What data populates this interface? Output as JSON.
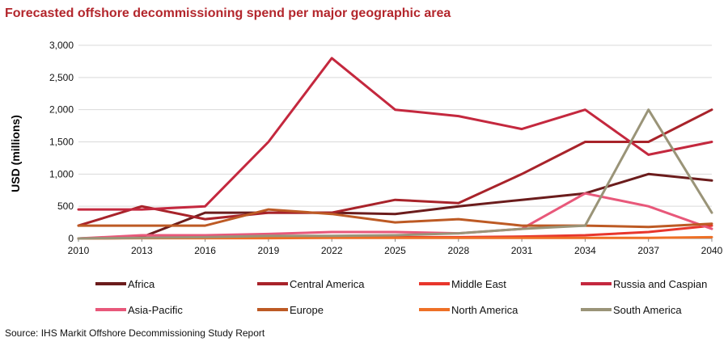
{
  "title": "Forecasted offshore decommissioning spend per major geographic area",
  "source": "Source: IHS Markit Offshore Decommissioning Study Report",
  "chart_data": {
    "type": "line",
    "title": "Forecasted offshore decommissioning spend per major geographic area",
    "xlabel": "",
    "ylabel": "USD (millions)",
    "x": [
      "2010",
      "2013",
      "2016",
      "2019",
      "2022",
      "2025",
      "2028",
      "2031",
      "2034",
      "2037",
      "2040"
    ],
    "ylim": [
      0,
      3000
    ],
    "yticks": [
      0,
      500,
      1000,
      1500,
      2000,
      2500,
      3000
    ],
    "ytick_labels": [
      "0",
      "500",
      "1,000",
      "1,500",
      "2,000",
      "2,500",
      "3,000"
    ],
    "grid": "horizontal",
    "legend_position": "bottom",
    "series": [
      {
        "name": "Africa",
        "color": "#6b1c1c",
        "values": [
          0,
          20,
          400,
          400,
          400,
          380,
          500,
          600,
          700,
          1000,
          900
        ]
      },
      {
        "name": "Central America",
        "color": "#a8232a",
        "values": [
          200,
          500,
          300,
          400,
          400,
          600,
          550,
          1000,
          1500,
          1500,
          2000
        ]
      },
      {
        "name": "Middle East",
        "color": "#e8362c",
        "values": [
          0,
          10,
          10,
          10,
          20,
          20,
          20,
          30,
          50,
          100,
          200
        ]
      },
      {
        "name": "Russia and Caspian",
        "color": "#c4283e",
        "values": [
          450,
          450,
          500,
          1500,
          2800,
          2000,
          1900,
          1700,
          2000,
          1300,
          1500
        ]
      },
      {
        "name": "Asia-Pacific",
        "color": "#e8587a",
        "values": [
          0,
          50,
          50,
          70,
          100,
          100,
          80,
          150,
          700,
          500,
          150
        ]
      },
      {
        "name": "Europe",
        "color": "#bd5a24",
        "values": [
          200,
          200,
          200,
          450,
          380,
          250,
          300,
          200,
          200,
          180,
          230
        ]
      },
      {
        "name": "North America",
        "color": "#ee7026",
        "values": [
          0,
          5,
          5,
          5,
          10,
          10,
          10,
          10,
          10,
          10,
          20
        ]
      },
      {
        "name": "South America",
        "color": "#9a9478",
        "values": [
          0,
          10,
          20,
          40,
          40,
          50,
          80,
          150,
          200,
          2000,
          400
        ]
      }
    ]
  }
}
